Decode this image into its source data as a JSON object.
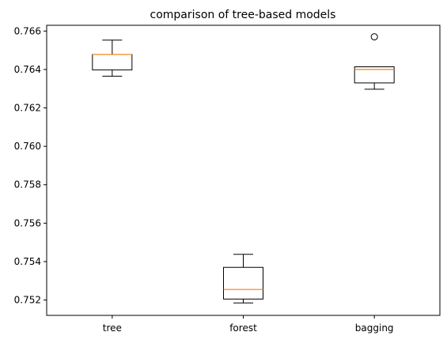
{
  "chart_data": {
    "type": "boxplot",
    "title": "comparison of tree-based models",
    "xlabel": "",
    "ylabel": "",
    "categories": [
      "tree",
      "forest",
      "bagging"
    ],
    "boxes": [
      {
        "label": "tree",
        "whisker_low": 0.76365,
        "q1": 0.76398,
        "median": 0.76478,
        "q3": 0.76478,
        "whisker_high": 0.76553,
        "outliers": []
      },
      {
        "label": "forest",
        "whisker_low": 0.75185,
        "q1": 0.75205,
        "median": 0.75255,
        "q3": 0.7537,
        "whisker_high": 0.75438,
        "outliers": []
      },
      {
        "label": "bagging",
        "whisker_low": 0.76297,
        "q1": 0.7633,
        "median": 0.764,
        "q3": 0.76414,
        "whisker_high": 0.76414,
        "outliers": [
          0.7657
        ]
      }
    ],
    "ylim": [
      0.7512,
      0.7663
    ],
    "yticks": [
      0.752,
      0.754,
      0.756,
      0.758,
      0.76,
      0.762,
      0.764,
      0.766
    ],
    "ytick_labels": [
      "0.752",
      "0.754",
      "0.756",
      "0.758",
      "0.760",
      "0.762",
      "0.764",
      "0.766"
    ],
    "grid": false,
    "legend": "none",
    "colors": {
      "box": "#000000",
      "median": "#ff7f0e",
      "background": "#ffffff"
    }
  }
}
